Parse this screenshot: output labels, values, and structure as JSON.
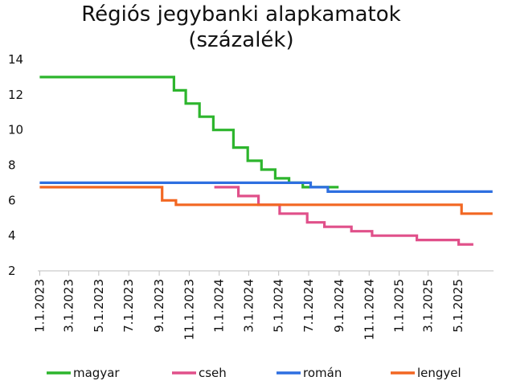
{
  "chart_data": {
    "type": "line",
    "title_lines": [
      "Régiós jegybanki alapkamatok",
      "(százalék)"
    ],
    "ylim": [
      2,
      14
    ],
    "yticks": [
      2,
      4,
      6,
      8,
      10,
      12,
      14
    ],
    "xlim": [
      "2022-12-28",
      "2025-07-12"
    ],
    "xticks": [
      {
        "date": "2023-01-01",
        "label": "1.1.2023"
      },
      {
        "date": "2023-03-01",
        "label": "3.1.2023"
      },
      {
        "date": "2023-05-01",
        "label": "5.1.2023"
      },
      {
        "date": "2023-07-01",
        "label": "7.1.2023"
      },
      {
        "date": "2023-09-01",
        "label": "9.1.2023"
      },
      {
        "date": "2023-11-01",
        "label": "11.1.2023"
      },
      {
        "date": "2024-01-01",
        "label": "1.1.2024"
      },
      {
        "date": "2024-03-01",
        "label": "3.1.2024"
      },
      {
        "date": "2024-05-01",
        "label": "5.1.2024"
      },
      {
        "date": "2024-07-01",
        "label": "7.1.2024"
      },
      {
        "date": "2024-09-01",
        "label": "9.1.2024"
      },
      {
        "date": "2024-11-01",
        "label": "11.1.2024"
      },
      {
        "date": "2025-01-01",
        "label": "1.1.2025"
      },
      {
        "date": "2025-03-01",
        "label": "3.1.2025"
      },
      {
        "date": "2025-05-01",
        "label": "5.1.2025"
      }
    ],
    "grid": false,
    "legend_position": "bottom",
    "series": [
      {
        "name": "magyar",
        "color": "#2db52d",
        "steps": [
          [
            "2023-01-01",
            13.0
          ],
          [
            "2023-10-01",
            12.25
          ],
          [
            "2023-10-25",
            11.5
          ],
          [
            "2023-11-22",
            10.75
          ],
          [
            "2023-12-20",
            10.0
          ],
          [
            "2024-01-30",
            9.0
          ],
          [
            "2024-02-28",
            8.25
          ],
          [
            "2024-03-27",
            7.75
          ],
          [
            "2024-04-24",
            7.25
          ],
          [
            "2024-05-22",
            7.0
          ],
          [
            "2024-06-19",
            6.75
          ],
          [
            "2024-08-31",
            6.75
          ]
        ]
      },
      {
        "name": "cseh",
        "color": "#e0508a",
        "steps": [
          [
            "2023-12-22",
            6.75
          ],
          [
            "2024-02-09",
            6.25
          ],
          [
            "2024-03-21",
            5.75
          ],
          [
            "2024-05-03",
            5.25
          ],
          [
            "2024-06-28",
            4.75
          ],
          [
            "2024-08-02",
            4.5
          ],
          [
            "2024-09-26",
            4.25
          ],
          [
            "2024-11-07",
            4.0
          ],
          [
            "2025-02-06",
            3.75
          ],
          [
            "2025-05-02",
            3.5
          ],
          [
            "2025-06-01",
            3.5
          ]
        ]
      },
      {
        "name": "román",
        "color": "#2e6fe0",
        "steps": [
          [
            "2023-01-01",
            7.0
          ],
          [
            "2024-07-05",
            6.75
          ],
          [
            "2024-08-09",
            6.5
          ],
          [
            "2025-07-10",
            6.5
          ]
        ]
      },
      {
        "name": "lengyel",
        "color": "#f26722",
        "steps": [
          [
            "2023-01-01",
            6.75
          ],
          [
            "2023-09-07",
            6.0
          ],
          [
            "2023-10-05",
            5.75
          ],
          [
            "2025-05-08",
            5.25
          ],
          [
            "2025-07-10",
            5.25
          ]
        ]
      }
    ]
  }
}
